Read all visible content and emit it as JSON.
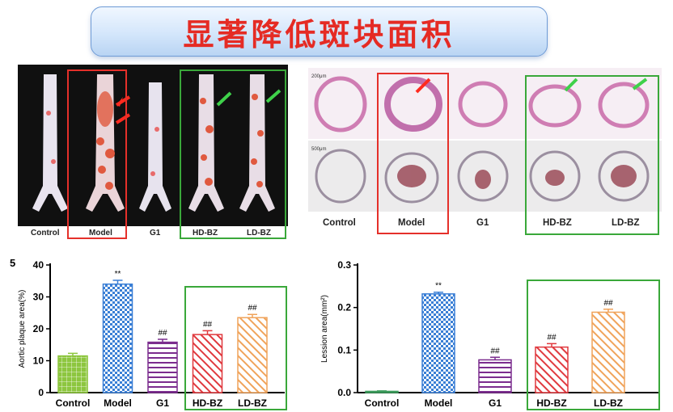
{
  "slide": {
    "title": "显著降低斑块面积",
    "title_color": "#e52b24"
  },
  "photo_panel": {
    "labels": [
      "Control",
      "Model",
      "G1",
      "HD-BZ",
      "LD-BZ"
    ]
  },
  "histo_panel": {
    "labels": [
      "Control",
      "Model",
      "G1",
      "HD-BZ",
      "LD-BZ"
    ],
    "scale_top": "200μm",
    "scale_bottom": "500μm"
  },
  "chart_data": [
    {
      "type": "bar",
      "panel_letter": "5",
      "ylabel": "Aortic plaque area(%)",
      "categories": [
        "Control",
        "Model",
        "G1",
        "HD-BZ",
        "LD-BZ"
      ],
      "values": [
        11.5,
        34,
        15.8,
        18.2,
        23.5
      ],
      "errors": [
        0.8,
        1.2,
        0.9,
        1.2,
        1.0
      ],
      "significance": [
        "",
        "**",
        "##",
        "##",
        "##"
      ],
      "ylim": [
        0,
        40
      ],
      "yticks": [
        0,
        10,
        20,
        30,
        40
      ],
      "colors": [
        "#8dc63f",
        "#3a7fd5",
        "#7b2d8e",
        "#e0393e",
        "#f0a35a"
      ],
      "patterns": [
        "grid",
        "checker",
        "hlines",
        "diag",
        "diag"
      ]
    },
    {
      "type": "bar",
      "ylabel": "Lession area(mm²)",
      "categories": [
        "Control",
        "Model",
        "G1",
        "HD-BZ",
        "LD-BZ"
      ],
      "values": [
        0.003,
        0.232,
        0.077,
        0.107,
        0.189
      ],
      "errors": [
        0.001,
        0.004,
        0.006,
        0.008,
        0.007
      ],
      "significance": [
        "",
        "**",
        "##",
        "##",
        "##"
      ],
      "ylim": [
        0,
        0.3
      ],
      "yticks": [
        "0.0",
        "0.1",
        "0.2",
        "0.3"
      ],
      "colors": [
        "#3a9a5a",
        "#3a7fd5",
        "#7b2d8e",
        "#e0393e",
        "#f0a35a"
      ],
      "patterns": [
        "solid",
        "checker",
        "hlines",
        "diag",
        "diag"
      ]
    }
  ]
}
